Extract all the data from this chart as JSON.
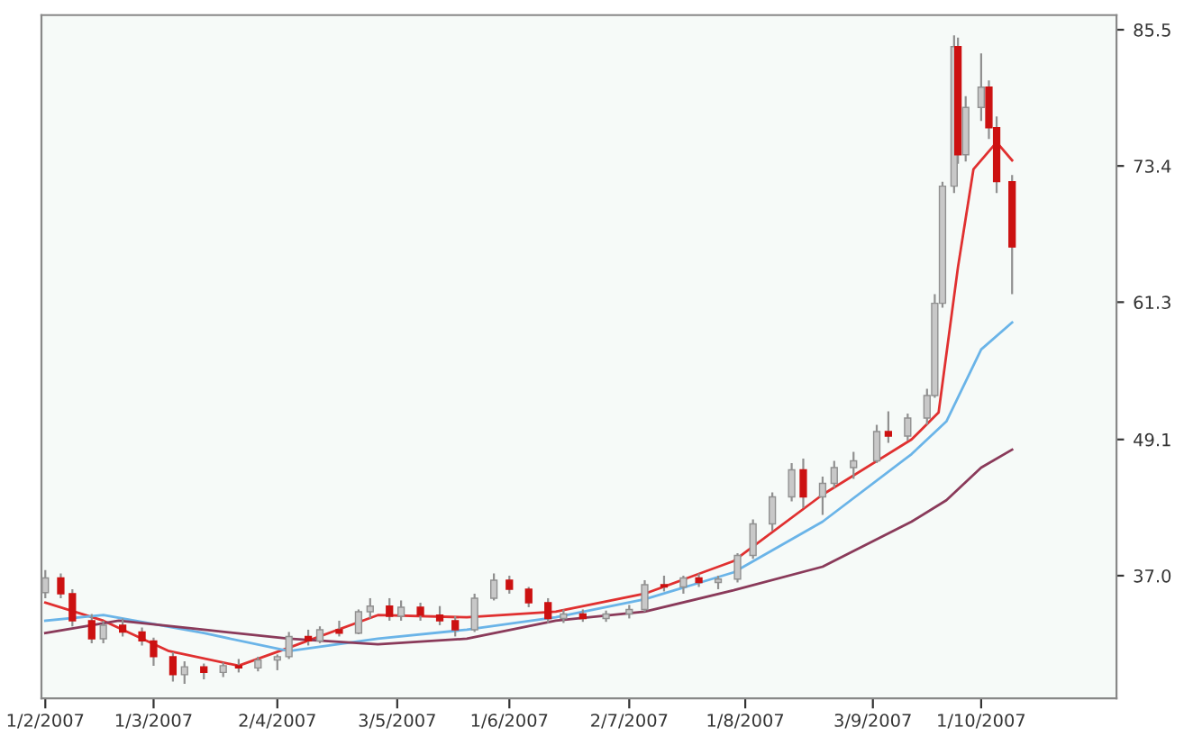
{
  "chart_data": {
    "type": "candlestick",
    "x": [
      "2007-02-01",
      "2007-02-05",
      "2007-02-08",
      "2007-02-13",
      "2007-02-16",
      "2007-02-21",
      "2007-02-26",
      "2007-03-01",
      "2007-03-06",
      "2007-03-09",
      "2007-03-14",
      "2007-03-19",
      "2007-03-23",
      "2007-03-28",
      "2007-04-02",
      "2007-04-05",
      "2007-04-10",
      "2007-04-13",
      "2007-04-18",
      "2007-04-23",
      "2007-04-26",
      "2007-05-01",
      "2007-05-04",
      "2007-05-09",
      "2007-05-14",
      "2007-05-18",
      "2007-05-23",
      "2007-05-28",
      "2007-06-01",
      "2007-06-06",
      "2007-06-11",
      "2007-06-15",
      "2007-06-20",
      "2007-06-26",
      "2007-07-02",
      "2007-07-06",
      "2007-07-11",
      "2007-07-16",
      "2007-07-20",
      "2007-07-25",
      "2007-07-30",
      "2007-08-03",
      "2007-08-08",
      "2007-08-13",
      "2007-08-16",
      "2007-08-21",
      "2007-08-24",
      "2007-08-29",
      "2007-09-04",
      "2007-09-07",
      "2007-09-12",
      "2007-09-17",
      "2007-09-19",
      "2007-09-21",
      "2007-09-24",
      "2007-09-25",
      "2007-09-27",
      "2007-10-01",
      "2007-10-03",
      "2007-10-05",
      "2007-10-09"
    ],
    "ohlc": [
      [
        35.5,
        37.5,
        35.0,
        36.8
      ],
      [
        36.8,
        37.2,
        35.0,
        35.4
      ],
      [
        35.4,
        35.8,
        32.5,
        33.0
      ],
      [
        33.0,
        33.6,
        31.0,
        31.4
      ],
      [
        31.4,
        33.0,
        31.0,
        32.6
      ],
      [
        32.6,
        33.2,
        31.6,
        32.0
      ],
      [
        32.0,
        32.4,
        30.8,
        31.2
      ],
      [
        31.2,
        31.5,
        29.0,
        29.8
      ],
      [
        29.8,
        30.2,
        27.6,
        28.2
      ],
      [
        28.2,
        29.4,
        27.4,
        28.9
      ],
      [
        28.9,
        29.2,
        27.8,
        28.4
      ],
      [
        28.4,
        29.3,
        28.0,
        29.0
      ],
      [
        29.0,
        29.6,
        28.4,
        28.8
      ],
      [
        28.8,
        29.8,
        28.5,
        29.5
      ],
      [
        29.5,
        30.0,
        28.6,
        29.8
      ],
      [
        29.8,
        32.0,
        29.6,
        31.6
      ],
      [
        31.6,
        32.2,
        30.8,
        31.2
      ],
      [
        31.2,
        32.5,
        31.0,
        32.2
      ],
      [
        32.2,
        33.0,
        31.6,
        31.9
      ],
      [
        31.9,
        34.0,
        31.8,
        33.8
      ],
      [
        33.8,
        35.0,
        33.2,
        34.3
      ],
      [
        34.3,
        35.0,
        33.0,
        33.4
      ],
      [
        33.4,
        34.8,
        33.0,
        34.2
      ],
      [
        34.2,
        34.6,
        33.0,
        33.5
      ],
      [
        33.5,
        34.3,
        32.6,
        33.0
      ],
      [
        33.0,
        33.4,
        31.6,
        32.2
      ],
      [
        32.2,
        35.4,
        32.0,
        35.0
      ],
      [
        35.0,
        37.2,
        34.8,
        36.6
      ],
      [
        36.6,
        37.0,
        35.4,
        35.8
      ],
      [
        35.8,
        36.0,
        34.2,
        34.6
      ],
      [
        34.6,
        35.0,
        32.8,
        33.2
      ],
      [
        33.2,
        34.0,
        32.8,
        33.6
      ],
      [
        33.6,
        34.0,
        32.9,
        33.2
      ],
      [
        33.2,
        33.9,
        32.9,
        33.6
      ],
      [
        33.6,
        34.4,
        33.2,
        34.0
      ],
      [
        34.0,
        36.6,
        33.8,
        36.2
      ],
      [
        36.2,
        37.0,
        35.6,
        36.0
      ],
      [
        36.0,
        37.0,
        35.4,
        36.8
      ],
      [
        36.8,
        37.2,
        36.0,
        36.4
      ],
      [
        36.4,
        37.0,
        35.8,
        36.7
      ],
      [
        36.7,
        39.0,
        36.4,
        38.8
      ],
      [
        38.8,
        42.0,
        38.5,
        41.6
      ],
      [
        41.6,
        44.4,
        41.0,
        44.0
      ],
      [
        44.0,
        47.0,
        43.6,
        46.4
      ],
      [
        46.4,
        47.4,
        43.0,
        44.0
      ],
      [
        44.0,
        45.8,
        42.4,
        45.2
      ],
      [
        45.2,
        47.2,
        44.8,
        46.6
      ],
      [
        46.6,
        48.0,
        45.6,
        47.2
      ],
      [
        47.2,
        50.4,
        47.0,
        49.8
      ],
      [
        49.8,
        51.6,
        48.8,
        49.4
      ],
      [
        49.4,
        51.4,
        49.0,
        51.0
      ],
      [
        51.0,
        53.6,
        50.4,
        53.0
      ],
      [
        53.0,
        62.0,
        52.8,
        61.2
      ],
      [
        61.2,
        72.0,
        60.8,
        71.6
      ],
      [
        71.6,
        85.0,
        71.0,
        84.0
      ],
      [
        84.0,
        84.8,
        73.6,
        74.4
      ],
      [
        74.4,
        79.6,
        73.8,
        78.6
      ],
      [
        78.6,
        83.4,
        77.4,
        80.4
      ],
      [
        80.4,
        81.0,
        75.8,
        76.8
      ],
      [
        76.8,
        77.8,
        71.0,
        72.0
      ],
      [
        72.0,
        72.6,
        62.0,
        66.2
      ]
    ],
    "colors": [
      "#c8c8c8",
      "#cc1111",
      "#cc1111",
      "#cc1111",
      "#c8c8c8",
      "#cc1111",
      "#cc1111",
      "#cc1111",
      "#cc1111",
      "#c8c8c8",
      "#cc1111",
      "#c8c8c8",
      "#cc1111",
      "#c8c8c8",
      "#c8c8c8",
      "#c8c8c8",
      "#cc1111",
      "#c8c8c8",
      "#cc1111",
      "#c8c8c8",
      "#c8c8c8",
      "#cc1111",
      "#c8c8c8",
      "#cc1111",
      "#cc1111",
      "#cc1111",
      "#c8c8c8",
      "#c8c8c8",
      "#cc1111",
      "#cc1111",
      "#cc1111",
      "#c8c8c8",
      "#cc1111",
      "#c8c8c8",
      "#c8c8c8",
      "#c8c8c8",
      "#cc1111",
      "#c8c8c8",
      "#cc1111",
      "#c8c8c8",
      "#c8c8c8",
      "#c8c8c8",
      "#c8c8c8",
      "#c8c8c8",
      "#cc1111",
      "#c8c8c8",
      "#c8c8c8",
      "#c8c8c8",
      "#c8c8c8",
      "#cc1111",
      "#c8c8c8",
      "#c8c8c8",
      "#c8c8c8",
      "#c8c8c8",
      "#c8c8c8",
      "#cc1111",
      "#c8c8c8",
      "#c8c8c8",
      "#cc1111",
      "#cc1111",
      "#cc1111"
    ],
    "series": [
      {
        "type": "line",
        "color": "#e03030",
        "x": [
          "2007-02-01",
          "2007-02-16",
          "2007-03-05",
          "2007-03-23",
          "2007-04-05",
          "2007-04-28",
          "2007-05-21",
          "2007-06-13",
          "2007-07-06",
          "2007-07-29",
          "2007-08-21",
          "2007-09-13",
          "2007-09-20",
          "2007-09-25",
          "2007-09-29",
          "2007-10-05",
          "2007-10-09"
        ],
        "values": [
          34.6,
          33.0,
          30.3,
          29.0,
          30.6,
          33.5,
          33.3,
          33.8,
          35.4,
          38.3,
          44.2,
          49.1,
          51.5,
          64.4,
          73.1,
          75.5,
          73.9
        ]
      },
      {
        "type": "line",
        "color": "#6ab4e8",
        "x": [
          "2007-02-01",
          "2007-02-16",
          "2007-03-14",
          "2007-04-05",
          "2007-04-28",
          "2007-05-21",
          "2007-06-13",
          "2007-07-06",
          "2007-07-29",
          "2007-08-21",
          "2007-09-13",
          "2007-09-22",
          "2007-10-01",
          "2007-10-09"
        ],
        "values": [
          33.0,
          33.5,
          31.9,
          30.3,
          31.4,
          32.2,
          33.3,
          34.9,
          37.3,
          41.8,
          47.8,
          50.7,
          57.1,
          59.5
        ]
      },
      {
        "type": "line",
        "color": "#8a3a5a",
        "x": [
          "2007-02-01",
          "2007-02-20",
          "2007-03-14",
          "2007-04-05",
          "2007-04-28",
          "2007-05-21",
          "2007-06-13",
          "2007-07-06",
          "2007-07-29",
          "2007-08-21",
          "2007-09-13",
          "2007-09-22",
          "2007-10-01",
          "2007-10-09"
        ],
        "values": [
          31.9,
          33.0,
          32.2,
          31.4,
          30.9,
          31.4,
          33.0,
          33.8,
          35.7,
          37.8,
          41.8,
          43.7,
          46.6,
          48.2
        ]
      }
    ],
    "xlim": [
      "2007-01-31",
      "2007-11-05"
    ],
    "xticks": [
      {
        "value": "2007-02-01",
        "label": "1/2/2007"
      },
      {
        "value": "2007-03-01",
        "label": "1/3/2007"
      },
      {
        "value": "2007-04-02",
        "label": "2/4/2007"
      },
      {
        "value": "2007-05-03",
        "label": "3/5/2007"
      },
      {
        "value": "2007-06-01",
        "label": "1/6/2007"
      },
      {
        "value": "2007-07-02",
        "label": "2/7/2007"
      },
      {
        "value": "2007-08-01",
        "label": "1/8/2007"
      },
      {
        "value": "2007-09-03",
        "label": "3/9/2007"
      },
      {
        "value": "2007-10-01",
        "label": "1/10/2007"
      }
    ],
    "ylim": [
      26.1,
      86.8
    ],
    "yticks": [
      {
        "value": 37.0,
        "label": "37.0"
      },
      {
        "value": 49.1,
        "label": "49.1"
      },
      {
        "value": 61.3,
        "label": "61.3"
      },
      {
        "value": 73.4,
        "label": "73.4"
      },
      {
        "value": 85.5,
        "label": "85.5"
      }
    ],
    "grid": false,
    "legend": false
  }
}
